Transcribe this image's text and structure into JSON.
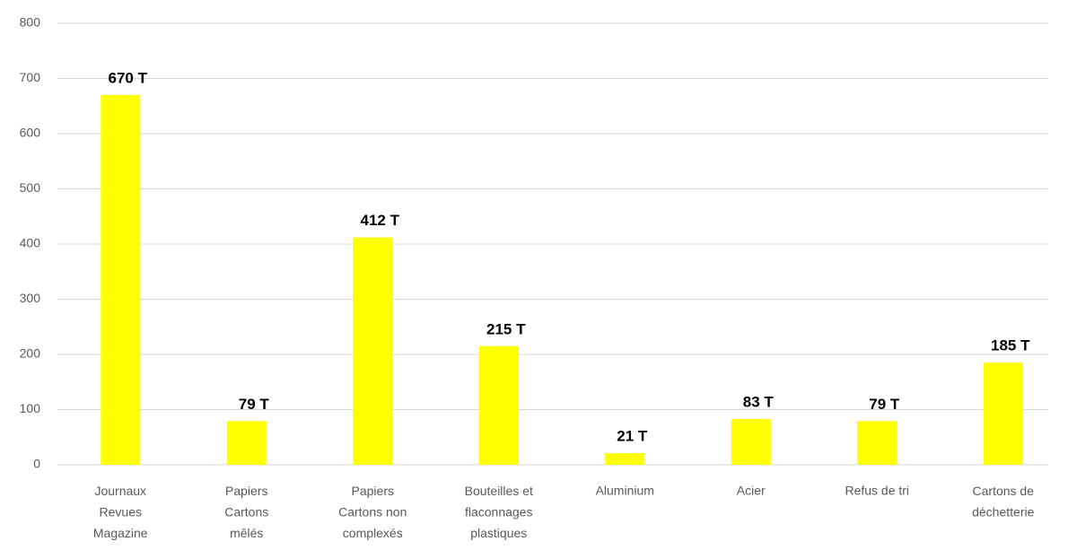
{
  "chart_data": {
    "type": "bar",
    "categories": [
      "Journaux\nRevues\nMagazine",
      "Papiers\nCartons\nmêlés",
      "Papiers\nCartons non\ncomplexés",
      "Bouteilles et\nflaconnages\nplastiques",
      "Aluminium",
      "Acier",
      "Refus de tri",
      "Cartons de\ndéchetterie"
    ],
    "values": [
      670,
      79,
      412,
      215,
      21,
      83,
      79,
      185
    ],
    "value_labels": [
      "670 T",
      "79 T",
      "412 T",
      "215 T",
      "21 T",
      "83 T",
      "79 T",
      "185 T"
    ],
    "color": "#ffff00",
    "ylim": [
      0,
      800
    ],
    "yticks": [
      0,
      100,
      200,
      300,
      400,
      500,
      600,
      700,
      800
    ],
    "grid": true
  }
}
